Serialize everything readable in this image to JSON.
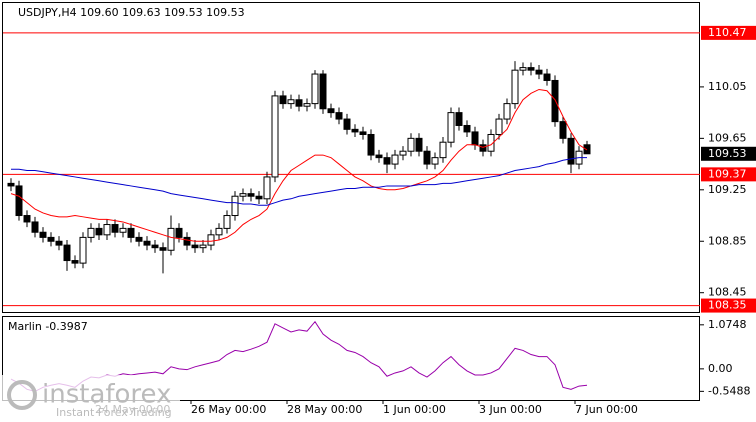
{
  "chart_data": {
    "type": "candlestick",
    "title": "USDJPY,H4  109.60 109.63 109.53 109.53",
    "categories": [
      null,
      null,
      null,
      null,
      null,
      null,
      null,
      null,
      null,
      null,
      null,
      "24 May 00:00",
      null,
      null,
      null,
      null,
      null,
      null,
      null,
      null,
      null,
      null,
      null,
      "26 May 00:00",
      null,
      null,
      null,
      null,
      null,
      null,
      null,
      null,
      null,
      null,
      null,
      "28 May 00:00",
      null,
      null,
      null,
      null,
      null,
      null,
      null,
      null,
      null,
      null,
      null,
      "1 Jun 00:00",
      null,
      null,
      null,
      null,
      null,
      null,
      null,
      null,
      null,
      null,
      null,
      "3 Jun 00:00",
      null,
      null,
      null,
      null,
      null,
      null,
      null,
      null,
      null,
      null,
      null,
      "7 Jun 00:00",
      null
    ],
    "open": [
      109.3,
      109.28,
      109.05,
      109.0,
      108.92,
      108.88,
      108.85,
      108.82,
      108.7,
      108.68,
      108.88,
      108.95,
      108.9,
      108.98,
      108.92,
      108.95,
      108.88,
      108.85,
      108.82,
      108.8,
      108.78,
      108.95,
      108.88,
      108.82,
      108.8,
      108.82,
      108.9,
      108.95,
      109.05,
      109.2,
      109.22,
      109.2,
      109.18,
      109.35,
      109.98,
      109.92,
      109.95,
      109.9,
      109.92,
      110.15,
      109.88,
      109.85,
      109.8,
      109.72,
      109.7,
      109.68,
      109.52,
      109.5,
      109.45,
      109.52,
      109.55,
      109.65,
      109.55,
      109.45,
      109.5,
      109.62,
      109.85,
      109.75,
      109.7,
      109.6,
      109.55,
      109.68,
      109.8,
      109.92,
      110.18,
      110.2,
      110.18,
      110.15,
      110.1,
      109.78,
      109.65,
      109.45,
      109.6
    ],
    "high": [
      109.34,
      109.32,
      109.09,
      109.04,
      108.96,
      108.92,
      108.89,
      108.86,
      108.74,
      108.92,
      108.99,
      108.99,
      109.02,
      109.02,
      108.99,
      108.99,
      108.92,
      108.89,
      108.86,
      108.84,
      109.05,
      108.99,
      108.92,
      108.86,
      108.86,
      108.94,
      108.99,
      109.09,
      109.24,
      109.26,
      109.26,
      109.24,
      109.39,
      110.02,
      110.02,
      109.99,
      109.99,
      109.96,
      110.18,
      110.18,
      109.92,
      109.89,
      109.84,
      109.76,
      109.74,
      109.72,
      109.56,
      109.54,
      109.56,
      109.59,
      109.69,
      109.69,
      109.59,
      109.54,
      109.66,
      109.89,
      109.89,
      109.79,
      109.74,
      109.64,
      109.72,
      109.84,
      109.96,
      110.25,
      110.24,
      110.24,
      110.22,
      110.19,
      110.14,
      109.82,
      109.69,
      109.59,
      109.63
    ],
    "low": [
      109.24,
      109.01,
      108.96,
      108.88,
      108.84,
      108.81,
      108.78,
      108.62,
      108.64,
      108.64,
      108.84,
      108.86,
      108.86,
      108.88,
      108.88,
      108.84,
      108.81,
      108.78,
      108.76,
      108.6,
      108.74,
      108.84,
      108.78,
      108.76,
      108.76,
      108.78,
      108.86,
      108.91,
      109.01,
      109.16,
      109.16,
      109.14,
      109.14,
      109.31,
      109.88,
      109.88,
      109.86,
      109.86,
      109.88,
      109.84,
      109.81,
      109.76,
      109.68,
      109.66,
      109.64,
      109.48,
      109.46,
      109.38,
      109.41,
      109.48,
      109.51,
      109.51,
      109.41,
      109.41,
      109.46,
      109.58,
      109.71,
      109.66,
      109.56,
      109.51,
      109.51,
      109.64,
      109.76,
      109.88,
      110.14,
      110.14,
      110.11,
      110.06,
      109.74,
      109.61,
      109.38,
      109.41,
      109.53
    ],
    "close": [
      109.28,
      109.05,
      109.0,
      108.92,
      108.88,
      108.85,
      108.82,
      108.7,
      108.68,
      108.88,
      108.95,
      108.9,
      108.98,
      108.92,
      108.95,
      108.88,
      108.85,
      108.82,
      108.8,
      108.78,
      108.95,
      108.88,
      108.82,
      108.8,
      108.82,
      108.9,
      108.95,
      109.05,
      109.2,
      109.22,
      109.2,
      109.18,
      109.35,
      109.98,
      109.92,
      109.95,
      109.9,
      109.92,
      110.15,
      109.88,
      109.85,
      109.8,
      109.72,
      109.7,
      109.68,
      109.52,
      109.5,
      109.45,
      109.52,
      109.55,
      109.65,
      109.55,
      109.45,
      109.5,
      109.62,
      109.85,
      109.75,
      109.7,
      109.6,
      109.55,
      109.68,
      109.8,
      109.92,
      110.18,
      110.2,
      110.18,
      110.15,
      110.1,
      109.78,
      109.65,
      109.45,
      109.55,
      109.53
    ],
    "series": [
      {
        "color": "#ff0000",
        "values": [
          109.22,
          109.2,
          109.15,
          109.1,
          109.07,
          109.05,
          109.04,
          109.04,
          109.05,
          109.04,
          109.03,
          109.02,
          109.02,
          109.01,
          109.0,
          108.98,
          108.96,
          108.94,
          108.92,
          108.9,
          108.88,
          108.87,
          108.86,
          108.85,
          108.85,
          108.85,
          108.86,
          108.88,
          108.92,
          108.98,
          109.02,
          109.05,
          109.1,
          109.22,
          109.32,
          109.4,
          109.44,
          109.48,
          109.52,
          109.52,
          109.5,
          109.45,
          109.4,
          109.35,
          109.32,
          109.28,
          109.26,
          109.25,
          109.25,
          109.26,
          109.28,
          109.3,
          109.32,
          109.35,
          109.4,
          109.48,
          109.55,
          109.6,
          109.6,
          109.58,
          109.6,
          109.66,
          109.72,
          109.85,
          109.95,
          110.0,
          110.03,
          110.02,
          109.95,
          109.82,
          109.7,
          109.6,
          109.56
        ]
      },
      {
        "color": "#0000cc",
        "values": [
          109.41,
          109.41,
          109.4,
          109.4,
          109.39,
          109.38,
          109.37,
          109.36,
          109.35,
          109.34,
          109.33,
          109.32,
          109.31,
          109.3,
          109.29,
          109.28,
          109.27,
          109.26,
          109.25,
          109.24,
          109.22,
          109.21,
          109.2,
          109.19,
          109.18,
          109.17,
          109.16,
          109.15,
          109.15,
          109.14,
          109.14,
          109.13,
          109.13,
          109.15,
          109.17,
          109.18,
          109.2,
          109.21,
          109.22,
          109.23,
          109.24,
          109.25,
          109.26,
          109.26,
          109.27,
          109.27,
          109.27,
          109.28,
          109.28,
          109.28,
          109.28,
          109.29,
          109.29,
          109.29,
          109.3,
          109.3,
          109.31,
          109.32,
          109.33,
          109.34,
          109.35,
          109.36,
          109.38,
          109.4,
          109.41,
          109.42,
          109.43,
          109.45,
          109.46,
          109.48,
          109.49,
          109.5,
          109.5
        ]
      }
    ],
    "ylim": [
      108.3,
      110.71
    ],
    "yticks": [
      110.05,
      109.65,
      109.25,
      108.85,
      108.45
    ],
    "levels": [
      110.47,
      109.37,
      108.35
    ],
    "level_color": "#ff0000",
    "last_price": 109.53,
    "indicator": {
      "label": "Marlin -0.3987",
      "color": "#9900aa",
      "values": [
        -0.25,
        -0.35,
        -0.5,
        -0.55,
        -0.45,
        -0.4,
        -0.36,
        -0.4,
        -0.45,
        -0.3,
        -0.2,
        -0.22,
        -0.15,
        -0.18,
        -0.12,
        -0.15,
        -0.12,
        -0.1,
        -0.08,
        -0.12,
        0.05,
        0.0,
        -0.02,
        0.05,
        0.1,
        0.15,
        0.2,
        0.35,
        0.45,
        0.42,
        0.48,
        0.55,
        0.65,
        1.1,
        1.0,
        0.9,
        0.95,
        0.92,
        1.15,
        0.85,
        0.7,
        0.6,
        0.45,
        0.4,
        0.3,
        0.15,
        0.05,
        -0.18,
        -0.1,
        -0.05,
        0.05,
        -0.1,
        -0.2,
        -0.05,
        0.15,
        0.3,
        0.1,
        -0.05,
        -0.15,
        -0.15,
        -0.1,
        0.0,
        0.25,
        0.5,
        0.45,
        0.35,
        0.3,
        0.3,
        0.1,
        -0.45,
        -0.5,
        -0.42,
        -0.3987
      ],
      "ylim": [
        -0.76,
        1.29
      ],
      "yticks": [
        1.0748,
        {
          "value": 0,
          "label": "0.00"
        },
        -0.5488
      ]
    },
    "watermark": {
      "brand": "instaforex",
      "tagline": "Instant Forex Trading"
    }
  }
}
